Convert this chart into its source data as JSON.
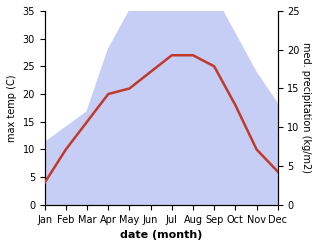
{
  "months": [
    "Jan",
    "Feb",
    "Mar",
    "Apr",
    "May",
    "Jun",
    "Jul",
    "Aug",
    "Sep",
    "Oct",
    "Nov",
    "Dec"
  ],
  "temperature": [
    4,
    10,
    15,
    20,
    21,
    24,
    27,
    27,
    25,
    18,
    10,
    6
  ],
  "precipitation": [
    8,
    10,
    12,
    20,
    25,
    42,
    25,
    42,
    27,
    22,
    17,
    13
  ],
  "temp_color": "#c0392b",
  "precip_color_fill": "#c6cef5",
  "ylabel_left": "max temp (C)",
  "ylabel_right": "med. precipitation (kg/m2)",
  "xlabel": "date (month)",
  "ylim_left": [
    0,
    35
  ],
  "ylim_right": [
    0,
    25
  ],
  "right_ticks": [
    0,
    5,
    10,
    15,
    20,
    25
  ],
  "left_ticks": [
    0,
    5,
    10,
    15,
    20,
    25,
    30,
    35
  ],
  "axis_fontsize": 8,
  "tick_fontsize": 7,
  "label_fontsize": 7
}
